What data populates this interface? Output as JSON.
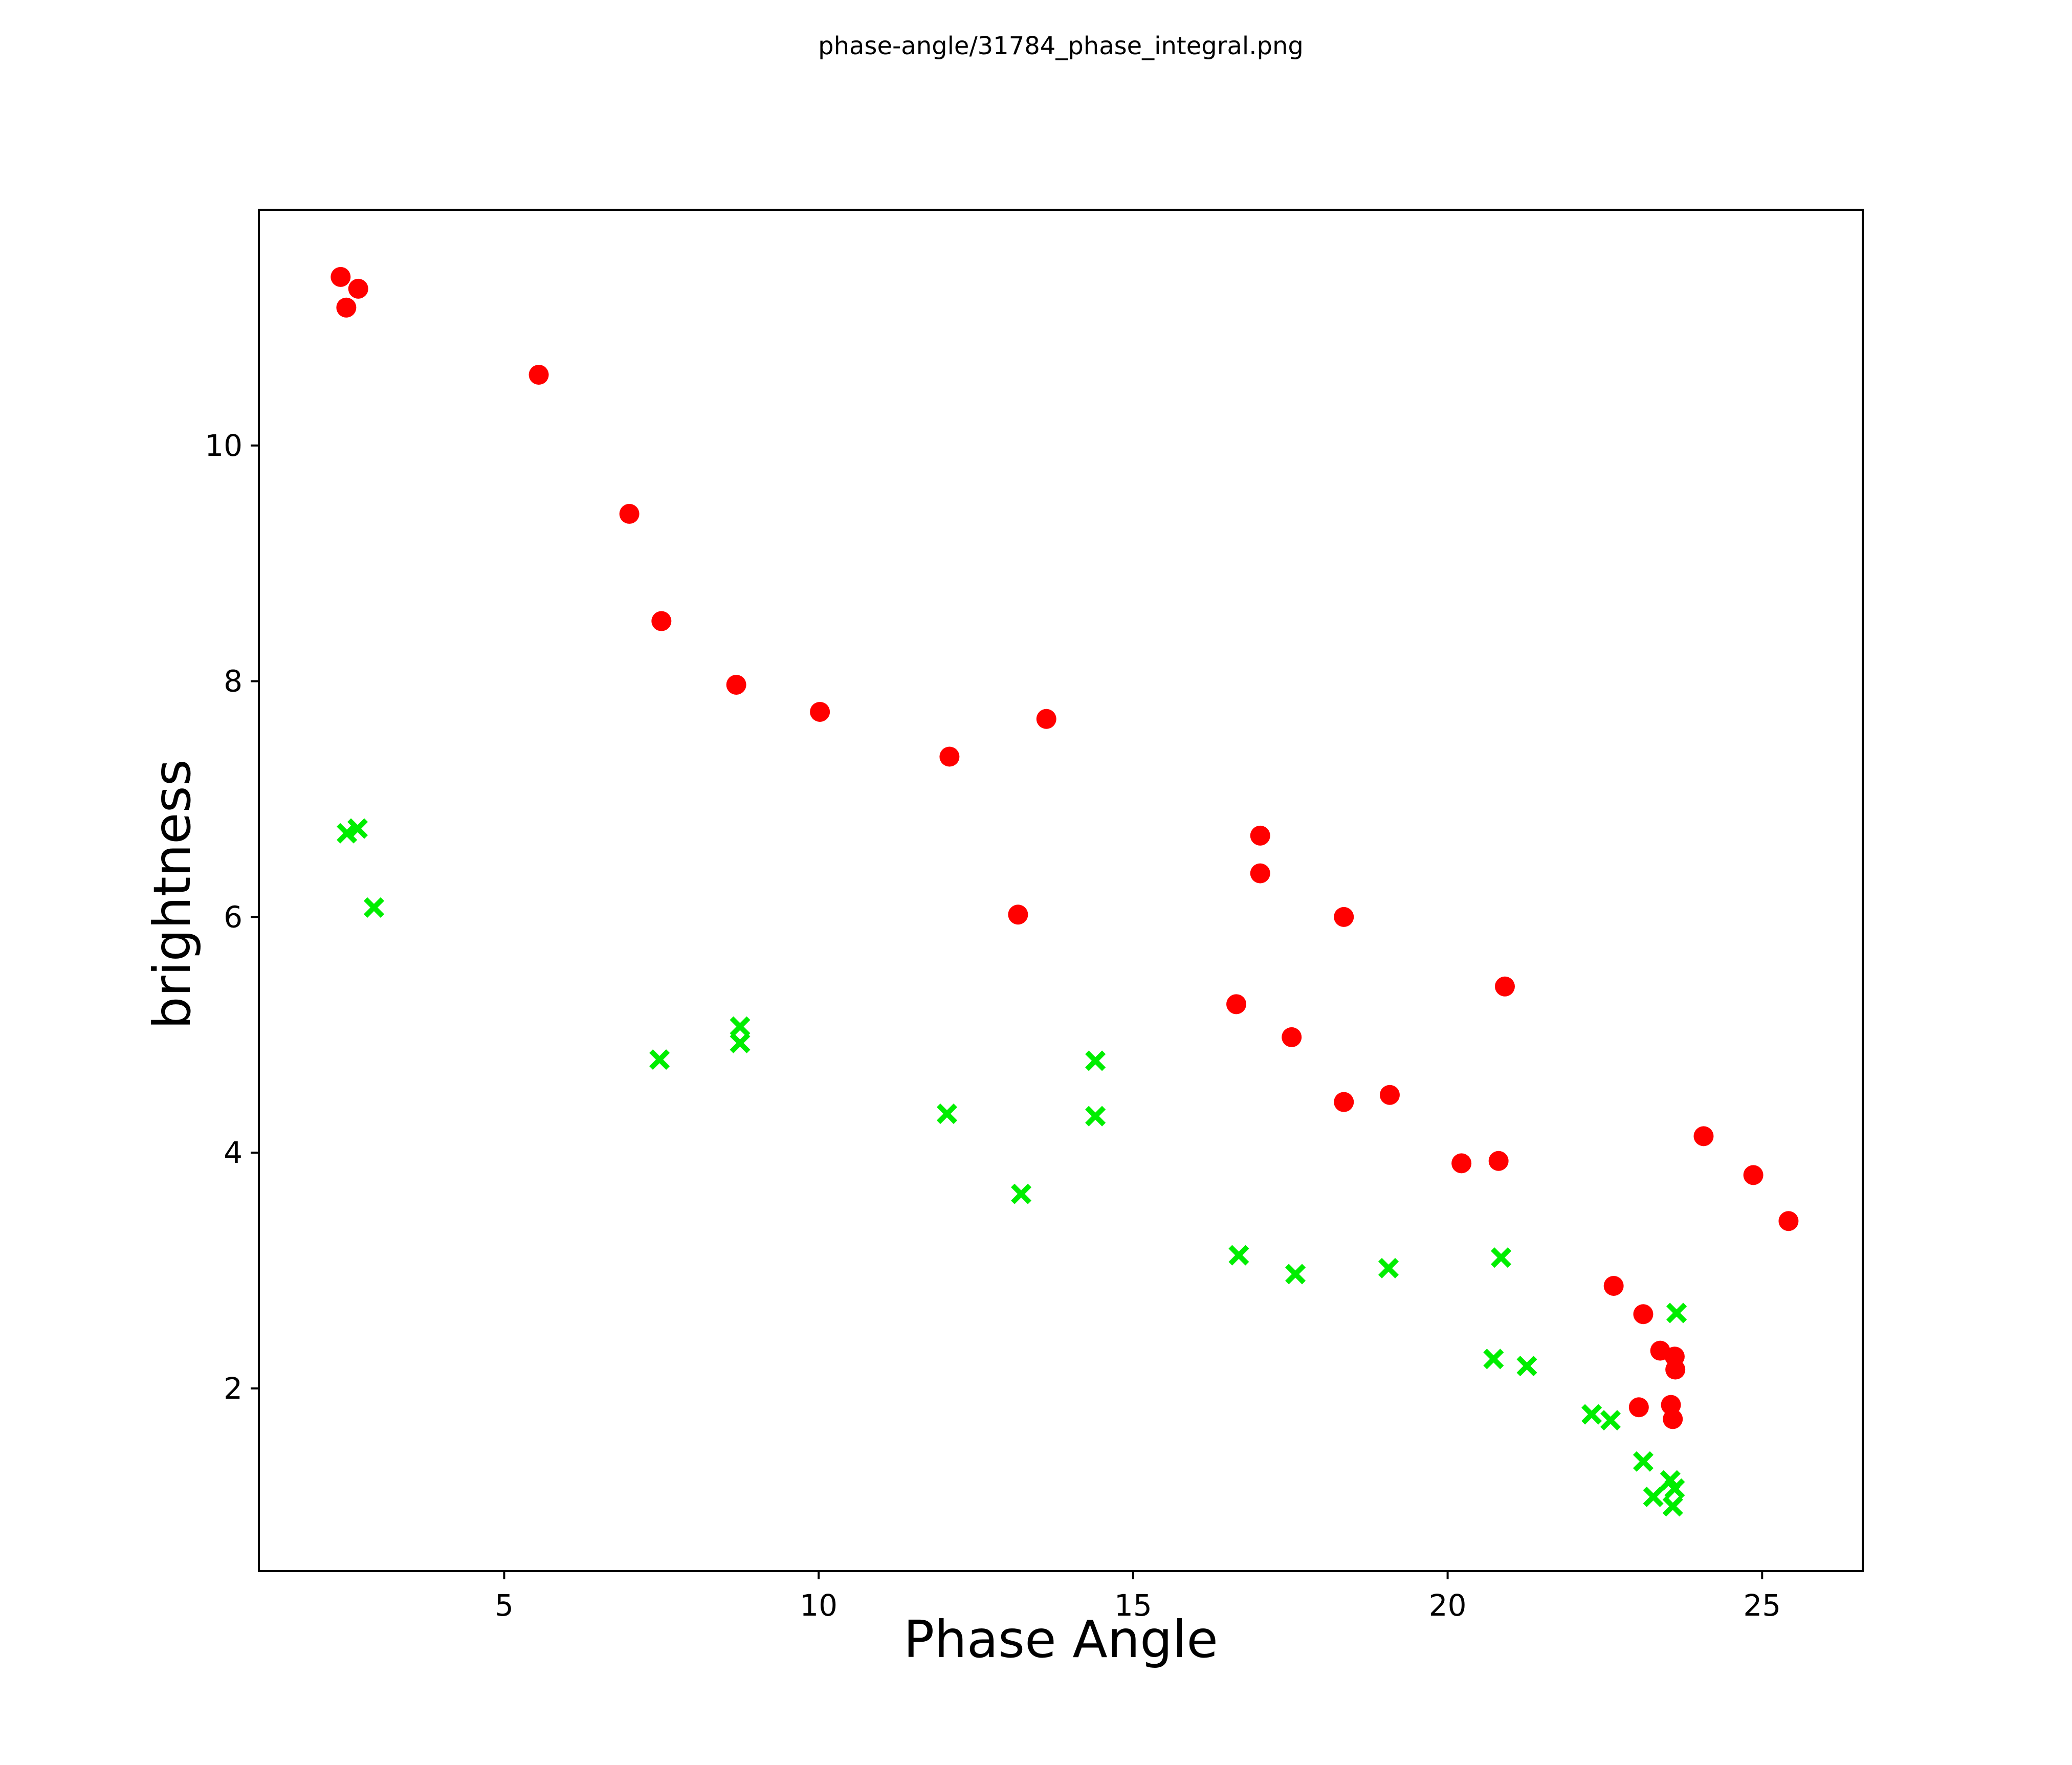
{
  "title": "phase-angle/31784_phase_integral.png",
  "chart_data": {
    "type": "scatter",
    "title": "phase-angle/31784_phase_integral.png",
    "xlabel": "Phase Angle",
    "ylabel": "brightness",
    "xlim": [
      1.1,
      26.6
    ],
    "ylim": [
      0.45,
      12.0
    ],
    "xticks": [
      5,
      10,
      15,
      20,
      25
    ],
    "yticks": [
      2,
      4,
      6,
      8,
      10
    ],
    "grid": false,
    "legend": false,
    "background_color": "#ffffff",
    "axis_color": "#000000",
    "series": [
      {
        "name": "red filled circles",
        "marker": "circle",
        "color": "#ff0000",
        "points": [
          [
            2.4,
            11.43
          ],
          [
            2.68,
            11.33
          ],
          [
            2.49,
            11.17
          ],
          [
            5.55,
            10.6
          ],
          [
            6.99,
            9.42
          ],
          [
            7.5,
            8.51
          ],
          [
            8.69,
            7.97
          ],
          [
            10.02,
            7.74
          ],
          [
            12.08,
            7.36
          ],
          [
            13.62,
            7.68
          ],
          [
            13.17,
            6.02
          ],
          [
            16.64,
            5.26
          ],
          [
            17.02,
            6.69
          ],
          [
            17.02,
            6.37
          ],
          [
            17.52,
            4.98
          ],
          [
            18.35,
            6.0
          ],
          [
            18.35,
            4.43
          ],
          [
            19.08,
            4.49
          ],
          [
            20.22,
            3.91
          ],
          [
            20.81,
            3.93
          ],
          [
            20.91,
            5.41
          ],
          [
            22.64,
            2.87
          ],
          [
            23.04,
            1.84
          ],
          [
            23.11,
            2.63
          ],
          [
            23.38,
            2.32
          ],
          [
            23.55,
            1.86
          ],
          [
            23.58,
            1.74
          ],
          [
            23.61,
            2.27
          ],
          [
            23.62,
            2.16
          ],
          [
            24.07,
            4.14
          ],
          [
            24.86,
            3.81
          ],
          [
            25.42,
            3.42
          ]
        ]
      },
      {
        "name": "green x markers",
        "marker": "x",
        "color": "#00ee00",
        "points": [
          [
            2.5,
            6.71
          ],
          [
            2.67,
            6.75
          ],
          [
            2.93,
            6.08
          ],
          [
            7.47,
            4.79
          ],
          [
            8.75,
            5.07
          ],
          [
            8.75,
            4.93
          ],
          [
            12.04,
            4.33
          ],
          [
            13.22,
            3.65
          ],
          [
            14.4,
            4.78
          ],
          [
            14.4,
            4.31
          ],
          [
            16.68,
            3.13
          ],
          [
            17.58,
            2.97
          ],
          [
            19.06,
            3.02
          ],
          [
            20.85,
            3.11
          ],
          [
            20.73,
            2.25
          ],
          [
            21.26,
            2.19
          ],
          [
            22.29,
            1.78
          ],
          [
            22.59,
            1.73
          ],
          [
            23.11,
            1.38
          ],
          [
            23.27,
            1.08
          ],
          [
            23.54,
            1.22
          ],
          [
            23.58,
            1.0
          ],
          [
            23.61,
            1.15
          ],
          [
            23.64,
            2.64
          ]
        ]
      }
    ]
  }
}
